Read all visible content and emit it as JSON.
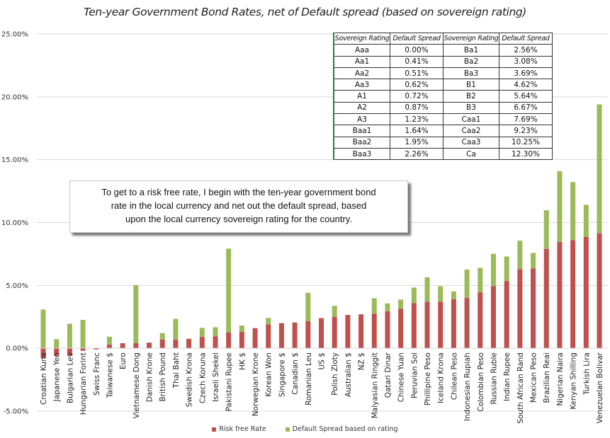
{
  "chart_data": {
    "type": "bar",
    "stacked": true,
    "title": "Ten-year Government Bond Rates, net of Default spread (based on sovereign rating)",
    "xlabel": "",
    "ylabel": "",
    "ylim": [
      -5,
      25
    ],
    "yticks": [
      "-5.00%",
      "0.00%",
      "5.00%",
      "10.00%",
      "15.00%",
      "20.00%",
      "25.00%"
    ],
    "ytick_values": [
      -5,
      0,
      5,
      10,
      15,
      20,
      25
    ],
    "grid": true,
    "legend_position": "bottom",
    "categories": [
      "Croatian Kuna",
      "Japanese Yen",
      "Bulgarian Lev",
      "Hungarian Forint",
      "Swiss Franc",
      "Taiwanese $",
      "Euro",
      "Vietnamese Dong",
      "Danish Krone",
      "British Pound",
      "Thai Baht",
      "Swedish Krona",
      "Czech Koruna",
      "Israeli Shekel",
      "Pakistani Rupee",
      "HK $",
      "Norwegian Krone",
      "Korean Won",
      "Singapore $",
      "Canadian $",
      "Romanian Leu",
      "US $",
      "Polish Zloty",
      "Australian $",
      "NZ $",
      "Malyasian Ringgit",
      "Qatari Dinar",
      "Chinese Yuan",
      "Peruvian Sol",
      "Phillipine Peso",
      "Iceland Krona",
      "Chilean Peso",
      "Indonesian Rupiah",
      "Colombian Peso",
      "Russian Ruble",
      "Indian Rupee",
      "South African Rand",
      "Mexican Peso",
      "Brazilian Reai",
      "Nigerian Naira",
      "Kenyan Shilling",
      "Turkish Lira",
      "Venezuelan Bolivar"
    ],
    "series": [
      {
        "name": "Risk free Rate",
        "color": "#c0504d",
        "values": [
          -0.8,
          -0.6,
          -0.6,
          -0.2,
          -0.1,
          0.3,
          0.4,
          0.4,
          0.45,
          0.7,
          0.7,
          0.75,
          0.9,
          0.95,
          1.25,
          1.3,
          1.6,
          1.9,
          2.0,
          2.05,
          2.15,
          2.4,
          2.5,
          2.65,
          2.7,
          2.75,
          2.95,
          3.15,
          3.6,
          3.7,
          3.7,
          3.9,
          4.0,
          4.45,
          4.95,
          5.35,
          6.3,
          6.35,
          7.9,
          8.45,
          8.6,
          8.85,
          9.15
        ]
      },
      {
        "name": "Default Spread based on rating",
        "color": "#9bbb59",
        "values": [
          3.08,
          0.72,
          1.95,
          2.26,
          0.0,
          0.62,
          0.0,
          4.62,
          0.0,
          0.51,
          1.64,
          0.0,
          0.72,
          0.72,
          6.67,
          0.51,
          0.0,
          0.51,
          0.0,
          0.0,
          2.26,
          0.0,
          0.87,
          0.0,
          0.0,
          1.23,
          0.62,
          0.72,
          1.23,
          1.95,
          1.23,
          0.62,
          2.26,
          1.95,
          2.56,
          1.95,
          2.26,
          1.23,
          3.08,
          5.64,
          4.62,
          2.56,
          10.25
        ]
      }
    ]
  },
  "table": {
    "headers": [
      "Sovereign Rating",
      "Default Spread",
      "Sovereign Rating",
      "Default Spread"
    ],
    "rows": [
      [
        "Aaa",
        "0.00%",
        "Ba1",
        "2.56%"
      ],
      [
        "Aa1",
        "0.41%",
        "Ba2",
        "3.08%"
      ],
      [
        "Aa2",
        "0.51%",
        "Ba3",
        "3.69%"
      ],
      [
        "Aa3",
        "0.62%",
        "B1",
        "4.62%"
      ],
      [
        "A1",
        "0.72%",
        "B2",
        "5.64%"
      ],
      [
        "A2",
        "0.87%",
        "B3",
        "6.67%"
      ],
      [
        "A3",
        "1.23%",
        "Caa1",
        "7.69%"
      ],
      [
        "Baa1",
        "1.64%",
        "Caa2",
        "9.23%"
      ],
      [
        "Baa2",
        "1.95%",
        "Caa3",
        "10.25%"
      ],
      [
        "Baa3",
        "2.26%",
        "Ca",
        "12.30%"
      ]
    ]
  },
  "note": {
    "lines": [
      "To get to a risk free rate, I begin with the ten-year government bond",
      "rate in the local currency and net out the default spread, based",
      "upon the local currency sovereign rating for the country."
    ]
  },
  "legend": [
    {
      "label": "Risk free Rate",
      "color": "#c0504d"
    },
    {
      "label": "Default Spread based on rating",
      "color": "#9bbb59"
    }
  ]
}
